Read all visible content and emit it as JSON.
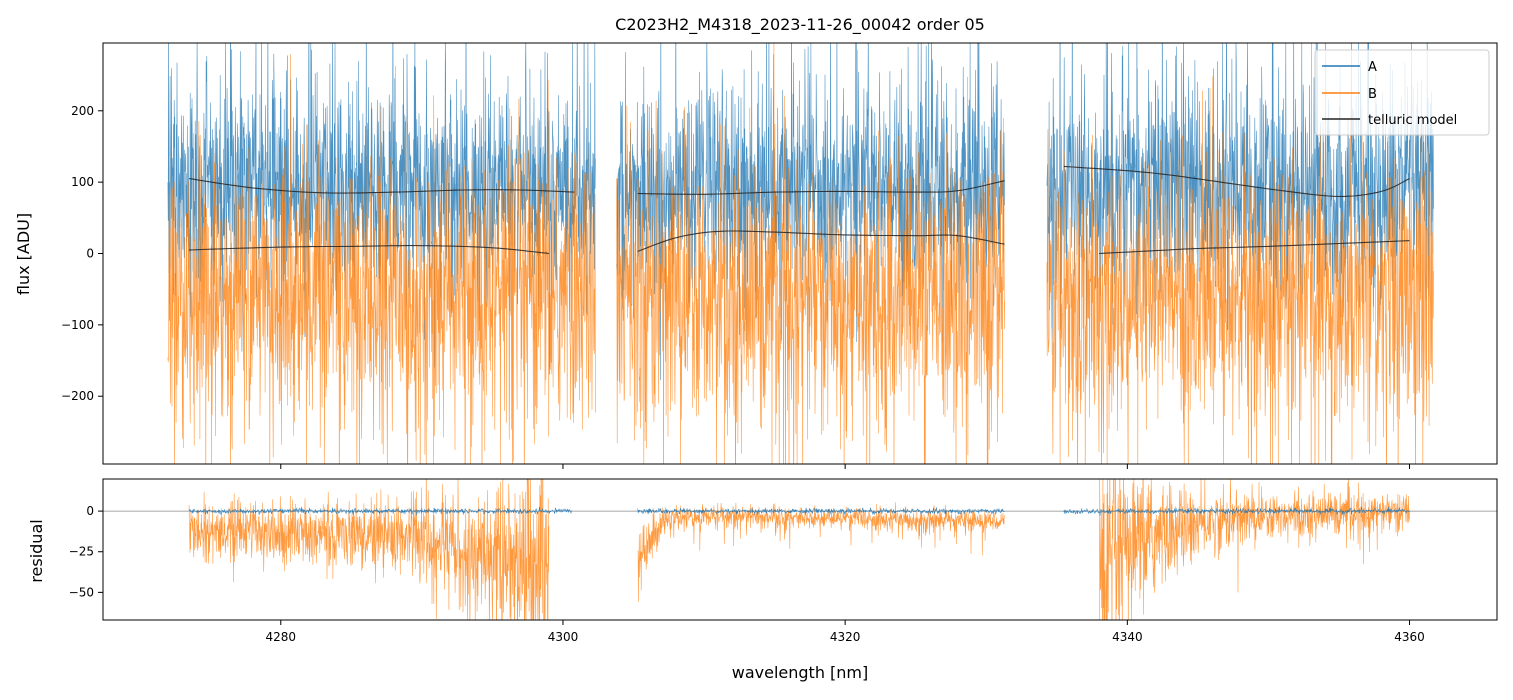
{
  "chart_data": {
    "type": "line",
    "title": "C2023H2_M4318_2023-11-26_00042  order 05",
    "xlabel": "wavelength [nm]",
    "xlim": [
      4267.4,
      4366.2
    ],
    "xticks": [
      4280,
      4300,
      4320,
      4340,
      4360
    ],
    "colors": {
      "A": "#1f77b4",
      "B": "#ff7f0e",
      "model": "#222222"
    },
    "panels": [
      {
        "name": "flux",
        "ylabel": "flux [ADU]",
        "ylim": [
          -295,
          295
        ],
        "yticks": [
          200,
          100,
          0,
          -100,
          -200
        ],
        "legend": {
          "placement": "top-right",
          "entries": [
            "A",
            "B",
            "telluric model"
          ]
        },
        "series": [
          {
            "name": "A",
            "kind": "noisy",
            "segments": [
              [
                4272.0,
                4302.3
              ],
              [
                4303.8,
                4331.3
              ],
              [
                4334.3,
                4361.7
              ]
            ],
            "mean": 85,
            "sigma": 75,
            "seed": 11
          },
          {
            "name": "B",
            "kind": "noisy",
            "segments": [
              [
                4272.0,
                4302.3
              ],
              [
                4303.8,
                4331.3
              ],
              [
                4334.3,
                4361.7
              ]
            ],
            "mean": -55,
            "sigma": 95,
            "seed": 23
          },
          {
            "name": "telluric model A",
            "kind": "curve",
            "points": [
              [
                [
                  4273.5,
                  105
                ],
                [
                  4278,
                  92
                ],
                [
                  4283,
                  85
                ],
                [
                  4288,
                  86
                ],
                [
                  4293,
                  89
                ],
                [
                  4297,
                  89
                ],
                [
                  4300.8,
                  86
                ]
              ],
              [
                [
                  4305.3,
                  84
                ],
                [
                  4310,
                  83
                ],
                [
                  4315,
                  86
                ],
                [
                  4320,
                  87
                ],
                [
                  4325,
                  86
                ],
                [
                  4328,
                  88
                ],
                [
                  4331.3,
                  102
                ]
              ],
              [
                [
                  4335.5,
                  122
                ],
                [
                  4340,
                  116
                ],
                [
                  4343,
                  110
                ],
                [
                  4347,
                  99
                ],
                [
                  4351,
                  88
                ],
                [
                  4355,
                  80
                ],
                [
                  4358,
                  87
                ],
                [
                  4360,
                  105
                ]
              ]
            ]
          },
          {
            "name": "telluric model B",
            "kind": "curve",
            "points": [
              [
                [
                  4273.5,
                  5
                ],
                [
                  4280,
                  9
                ],
                [
                  4285,
                  10
                ],
                [
                  4290,
                  11
                ],
                [
                  4295,
                  8
                ],
                [
                  4299,
                  0
                ]
              ],
              [
                [
                  4305.3,
                  3
                ],
                [
                  4308,
                  22
                ],
                [
                  4311,
                  31
                ],
                [
                  4315,
                  30
                ],
                [
                  4320,
                  26
                ],
                [
                  4325,
                  25
                ],
                [
                  4328,
                  25
                ],
                [
                  4331.3,
                  13
                ]
              ],
              [
                [
                  4338,
                  0
                ],
                [
                  4342,
                  4
                ],
                [
                  4345,
                  7
                ],
                [
                  4350,
                  10
                ],
                [
                  4355,
                  14
                ],
                [
                  4360,
                  18
                ]
              ]
            ]
          }
        ]
      },
      {
        "name": "residual",
        "ylabel": "residual",
        "ylim": [
          -67,
          19.75
        ],
        "yticks": [
          0,
          -25,
          -50
        ],
        "series": [
          {
            "name": "A",
            "kind": "residual",
            "segments": [
              [
                4273.5,
                4300.6
              ],
              [
                4305.3,
                4331.3
              ],
              [
                4335.5,
                4360.0
              ]
            ],
            "seed": 5
          },
          {
            "name": "B",
            "kind": "residual",
            "segments": [
              [
                4273.5,
                4299.0
              ],
              [
                4305.3,
                4331.3
              ],
              [
                4338.0,
                4360.0
              ]
            ],
            "seed": 7
          }
        ]
      }
    ]
  }
}
